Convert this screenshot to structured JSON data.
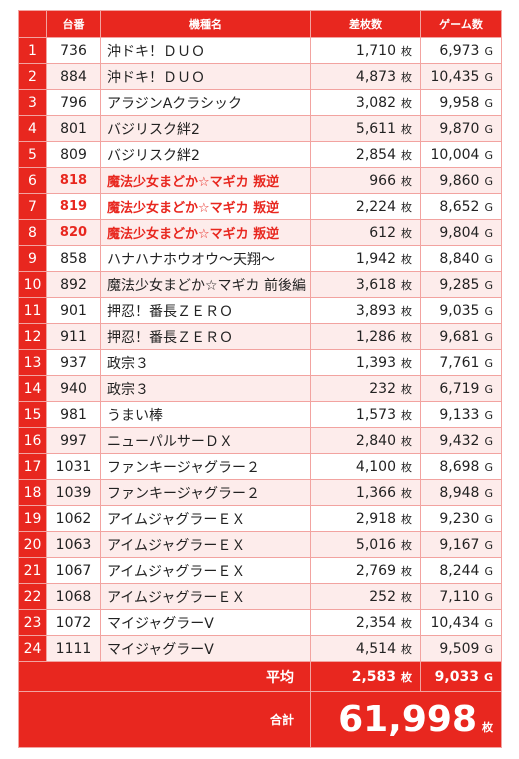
{
  "table": {
    "header": [
      "台番",
      "機種名",
      "差枚数",
      "ゲーム数"
    ],
    "units": {
      "diff": "枚",
      "games": "G"
    },
    "rows": [
      {
        "rank": "1",
        "machine": "736",
        "name": "沖ドキ！ＤＵＯ",
        "diff": "1,710",
        "games": "6,973"
      },
      {
        "rank": "2",
        "machine": "884",
        "name": "沖ドキ！ＤＵＯ",
        "diff": "4,873",
        "games": "10,435"
      },
      {
        "rank": "3",
        "machine": "796",
        "name": "アラジンAクラシック",
        "diff": "3,082",
        "games": "9,958"
      },
      {
        "rank": "4",
        "machine": "801",
        "name": "バジリスク絆2",
        "diff": "5,611",
        "games": "9,870"
      },
      {
        "rank": "5",
        "machine": "809",
        "name": "バジリスク絆2",
        "diff": "2,854",
        "games": "10,004"
      },
      {
        "rank": "6",
        "machine": "818",
        "name": "魔法少女まどか☆マギカ 叛逆",
        "diff": "966",
        "games": "9,860",
        "highlight": true
      },
      {
        "rank": "7",
        "machine": "819",
        "name": "魔法少女まどか☆マギカ 叛逆",
        "diff": "2,224",
        "games": "8,652",
        "highlight": true
      },
      {
        "rank": "8",
        "machine": "820",
        "name": "魔法少女まどか☆マギカ 叛逆",
        "diff": "612",
        "games": "9,804",
        "highlight": true
      },
      {
        "rank": "9",
        "machine": "858",
        "name": "ハナハナホウオウ〜天翔〜",
        "diff": "1,942",
        "games": "8,840"
      },
      {
        "rank": "10",
        "machine": "892",
        "name": "魔法少女まどか☆マギカ 前後編",
        "diff": "3,618",
        "games": "9,285"
      },
      {
        "rank": "11",
        "machine": "901",
        "name": "押忍！番長ＺＥＲＯ",
        "diff": "3,893",
        "games": "9,035"
      },
      {
        "rank": "12",
        "machine": "911",
        "name": "押忍！番長ＺＥＲＯ",
        "diff": "1,286",
        "games": "9,681"
      },
      {
        "rank": "13",
        "machine": "937",
        "name": "政宗３",
        "diff": "1,393",
        "games": "7,761"
      },
      {
        "rank": "14",
        "machine": "940",
        "name": "政宗３",
        "diff": "232",
        "games": "6,719"
      },
      {
        "rank": "15",
        "machine": "981",
        "name": "うまい棒",
        "diff": "1,573",
        "games": "9,133"
      },
      {
        "rank": "16",
        "machine": "997",
        "name": "ニューパルサーＤＸ",
        "diff": "2,840",
        "games": "9,432"
      },
      {
        "rank": "17",
        "machine": "1031",
        "name": "ファンキージャグラー２",
        "diff": "4,100",
        "games": "8,698"
      },
      {
        "rank": "18",
        "machine": "1039",
        "name": "ファンキージャグラー２",
        "diff": "1,366",
        "games": "8,948"
      },
      {
        "rank": "19",
        "machine": "1062",
        "name": "アイムジャグラーＥＸ",
        "diff": "2,918",
        "games": "9,230"
      },
      {
        "rank": "20",
        "machine": "1063",
        "name": "アイムジャグラーＥＸ",
        "diff": "5,016",
        "games": "9,167"
      },
      {
        "rank": "21",
        "machine": "1067",
        "name": "アイムジャグラーＥＸ",
        "diff": "2,769",
        "games": "8,244"
      },
      {
        "rank": "22",
        "machine": "1068",
        "name": "アイムジャグラーＥＸ",
        "diff": "252",
        "games": "7,110"
      },
      {
        "rank": "23",
        "machine": "1072",
        "name": "マイジャグラーV",
        "diff": "2,354",
        "games": "10,434"
      },
      {
        "rank": "24",
        "machine": "1111",
        "name": "マイジャグラーV",
        "diff": "4,514",
        "games": "9,509"
      }
    ],
    "average": {
      "label": "平均",
      "diff": "2,583",
      "games": "9,033"
    },
    "total": {
      "label": "合計",
      "diff": "61,998"
    }
  }
}
